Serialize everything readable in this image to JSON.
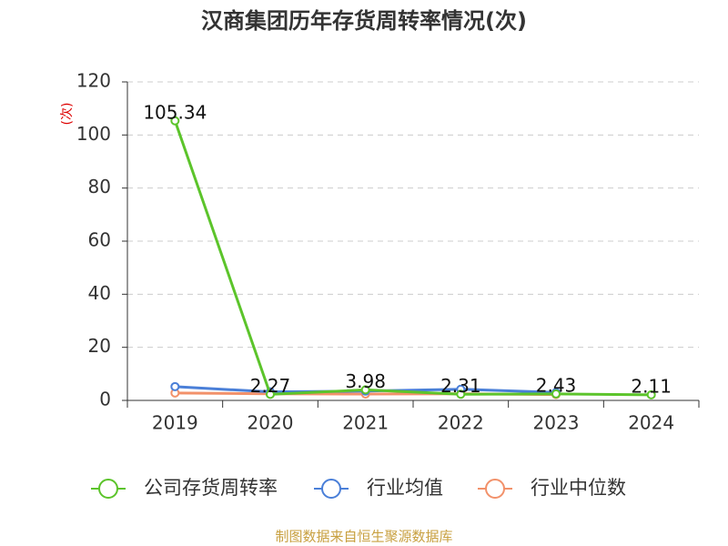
{
  "chart_data": {
    "type": "line",
    "title": "汉商集团历年存货周转率情况(次)",
    "y_label": "(次)",
    "source": "制图数据来自恒生聚源数据库",
    "categories": [
      "2019",
      "2020",
      "2021",
      "2022",
      "2023",
      "2024"
    ],
    "series": [
      {
        "name": "公司存货周转率",
        "color": "#5cc42b",
        "values": [
          105.34,
          2.27,
          3.98,
          2.31,
          2.43,
          2.11
        ],
        "labels": true
      },
      {
        "name": "行业均值",
        "color": "#4a7fd8",
        "values": [
          5.2,
          3.2,
          3.5,
          4.2,
          3.0,
          null
        ]
      },
      {
        "name": "行业中位数",
        "color": "#f2916a",
        "values": [
          2.8,
          2.5,
          2.4,
          2.5,
          2.2,
          null
        ]
      }
    ],
    "ylim": [
      0,
      120
    ],
    "yticks": [
      0,
      20,
      40,
      60,
      80,
      100,
      120
    ],
    "grid": true
  }
}
